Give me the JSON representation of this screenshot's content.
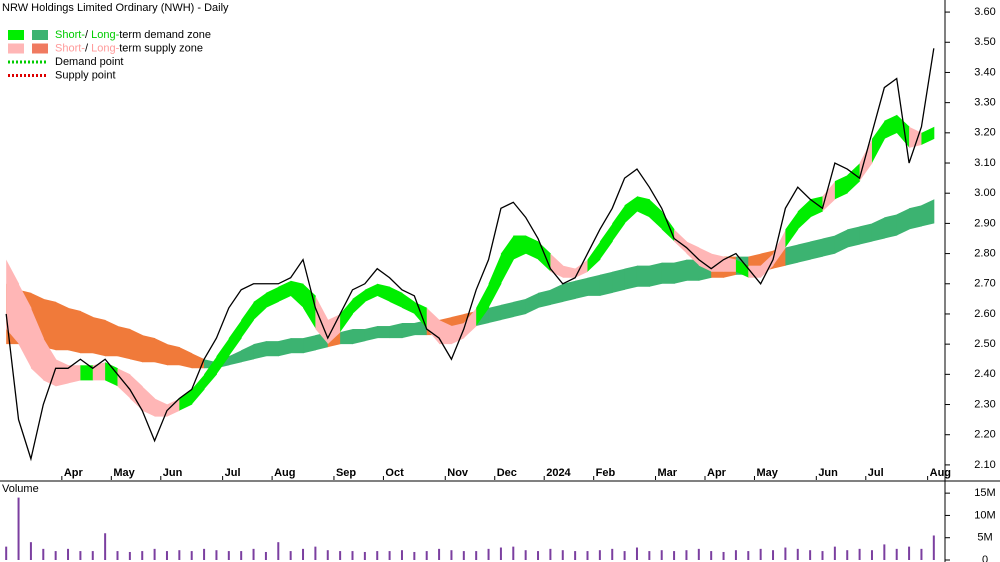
{
  "chart_data": [
    {
      "type": "zone-line",
      "title": "NRW Holdings Limited Ordinary (NWH) - Daily",
      "legend": [
        {
          "parts": [
            {
              "text": "Short-",
              "color": "#00cc00"
            },
            {
              "text": "/ ",
              "color": "#000000"
            },
            {
              "text": "Long-",
              "color": "#00cc00"
            },
            {
              "text": "term demand zone",
              "color": "#000000"
            }
          ],
          "swatches": [
            "#00ee00",
            "#3cb371"
          ]
        },
        {
          "parts": [
            {
              "text": "Short-",
              "color": "#ff9a9a"
            },
            {
              "text": "/ ",
              "color": "#000000"
            },
            {
              "text": "Long-",
              "color": "#ff9a9a"
            },
            {
              "text": "term supply zone",
              "color": "#000000"
            }
          ],
          "swatches": [
            "#ffb6b6",
            "#f07a60"
          ]
        },
        {
          "parts": [
            {
              "text": "Demand point",
              "color": "#000000"
            }
          ],
          "dotted": "#00cc00"
        },
        {
          "parts": [
            {
              "text": "Supply point",
              "color": "#000000"
            }
          ],
          "dotted": "#dd0000"
        }
      ],
      "categories": [
        null,
        null,
        null,
        null,
        null,
        "Apr",
        null,
        null,
        null,
        "May",
        null,
        null,
        null,
        "Jun",
        null,
        null,
        null,
        null,
        "Jul",
        null,
        null,
        null,
        "Aug",
        null,
        null,
        null,
        null,
        "Sep",
        null,
        null,
        null,
        "Oct",
        null,
        null,
        null,
        null,
        "Nov",
        null,
        null,
        null,
        "Dec",
        null,
        null,
        null,
        "2024",
        null,
        null,
        null,
        "Feb",
        null,
        null,
        null,
        null,
        "Mar",
        null,
        null,
        null,
        "Apr",
        null,
        null,
        null,
        "May",
        null,
        null,
        null,
        null,
        "Jun",
        null,
        null,
        null,
        "Jul",
        null,
        null,
        null,
        null,
        "Aug"
      ],
      "series": [
        {
          "name": "Close",
          "color": "#000000",
          "values": [
            2.6,
            2.25,
            2.12,
            2.3,
            2.42,
            2.42,
            2.45,
            2.42,
            2.45,
            2.4,
            2.35,
            2.28,
            2.18,
            2.28,
            2.32,
            2.35,
            2.45,
            2.52,
            2.62,
            2.68,
            2.7,
            2.7,
            2.7,
            2.72,
            2.78,
            2.62,
            2.52,
            2.6,
            2.68,
            2.7,
            2.75,
            2.72,
            2.68,
            2.66,
            2.55,
            2.52,
            2.45,
            2.55,
            2.68,
            2.78,
            2.95,
            2.97,
            2.92,
            2.85,
            2.75,
            2.7,
            2.72,
            2.8,
            2.88,
            2.95,
            3.05,
            3.08,
            3.02,
            2.95,
            2.85,
            2.82,
            2.78,
            2.75,
            2.78,
            2.8,
            2.75,
            2.7,
            2.78,
            2.95,
            3.02,
            2.98,
            2.95,
            3.1,
            3.08,
            3.05,
            3.2,
            3.35,
            3.38,
            3.1,
            3.22,
            3.48
          ]
        }
      ],
      "zones": [
        {
          "demand_color": "#3cb371",
          "supply_color": "#f07a3a",
          "upper": [
            2.7,
            2.68,
            2.67,
            2.65,
            2.64,
            2.62,
            2.61,
            2.59,
            2.58,
            2.56,
            2.55,
            2.53,
            2.52,
            2.5,
            2.49,
            2.47,
            2.45,
            2.44,
            2.46,
            2.48,
            2.5,
            2.51,
            2.51,
            2.52,
            2.52,
            2.53,
            2.54,
            2.54,
            2.55,
            2.55,
            2.56,
            2.56,
            2.57,
            2.57,
            2.58,
            2.58,
            2.59,
            2.6,
            2.61,
            2.62,
            2.63,
            2.64,
            2.65,
            2.67,
            2.68,
            2.7,
            2.71,
            2.72,
            2.73,
            2.74,
            2.75,
            2.76,
            2.76,
            2.77,
            2.77,
            2.78,
            2.78,
            2.78,
            2.79,
            2.79,
            2.79,
            2.8,
            2.81,
            2.82,
            2.83,
            2.84,
            2.85,
            2.86,
            2.88,
            2.89,
            2.9,
            2.92,
            2.93,
            2.95,
            2.96,
            2.98
          ],
          "lower": [
            2.5,
            2.5,
            2.49,
            2.49,
            2.48,
            2.48,
            2.47,
            2.47,
            2.46,
            2.46,
            2.45,
            2.44,
            2.44,
            2.43,
            2.43,
            2.42,
            2.42,
            2.42,
            2.43,
            2.44,
            2.45,
            2.46,
            2.46,
            2.47,
            2.47,
            2.48,
            2.49,
            2.5,
            2.5,
            2.51,
            2.52,
            2.52,
            2.52,
            2.53,
            2.53,
            2.53,
            2.54,
            2.55,
            2.56,
            2.57,
            2.58,
            2.59,
            2.6,
            2.62,
            2.63,
            2.64,
            2.65,
            2.66,
            2.66,
            2.67,
            2.68,
            2.69,
            2.69,
            2.7,
            2.7,
            2.71,
            2.71,
            2.72,
            2.72,
            2.73,
            2.73,
            2.74,
            2.75,
            2.76,
            2.77,
            2.78,
            2.79,
            2.8,
            2.82,
            2.83,
            2.84,
            2.85,
            2.86,
            2.88,
            2.89,
            2.9
          ]
        },
        {
          "demand_color": "#00ee00",
          "supply_color": "#ffb6b6",
          "upper": [
            2.78,
            2.7,
            2.62,
            2.52,
            2.45,
            2.43,
            2.43,
            2.43,
            2.44,
            2.42,
            2.4,
            2.36,
            2.32,
            2.3,
            2.32,
            2.35,
            2.4,
            2.46,
            2.52,
            2.58,
            2.64,
            2.67,
            2.69,
            2.71,
            2.7,
            2.66,
            2.58,
            2.6,
            2.65,
            2.68,
            2.7,
            2.69,
            2.67,
            2.64,
            2.62,
            2.58,
            2.56,
            2.57,
            2.62,
            2.7,
            2.8,
            2.86,
            2.86,
            2.84,
            2.8,
            2.76,
            2.75,
            2.78,
            2.84,
            2.9,
            2.96,
            2.99,
            2.98,
            2.94,
            2.88,
            2.84,
            2.82,
            2.8,
            2.79,
            2.78,
            2.76,
            2.76,
            2.8,
            2.88,
            2.94,
            2.98,
            2.99,
            3.04,
            3.06,
            3.1,
            3.18,
            3.24,
            3.26,
            3.22,
            3.2,
            3.22
          ],
          "lower": [
            2.55,
            2.5,
            2.42,
            2.38,
            2.36,
            2.37,
            2.38,
            2.38,
            2.38,
            2.36,
            2.32,
            2.28,
            2.26,
            2.26,
            2.28,
            2.3,
            2.35,
            2.4,
            2.46,
            2.52,
            2.58,
            2.62,
            2.64,
            2.66,
            2.62,
            2.55,
            2.5,
            2.54,
            2.6,
            2.64,
            2.66,
            2.64,
            2.62,
            2.6,
            2.55,
            2.5,
            2.5,
            2.52,
            2.56,
            2.62,
            2.7,
            2.78,
            2.8,
            2.78,
            2.74,
            2.72,
            2.72,
            2.74,
            2.78,
            2.84,
            2.9,
            2.94,
            2.92,
            2.88,
            2.84,
            2.8,
            2.76,
            2.74,
            2.74,
            2.74,
            2.72,
            2.72,
            2.76,
            2.82,
            2.88,
            2.92,
            2.94,
            2.98,
            3.0,
            3.04,
            3.1,
            3.18,
            3.2,
            3.15,
            3.16,
            3.18
          ]
        }
      ],
      "ylim": [
        2.05,
        3.64
      ],
      "yticks": [
        {
          "value": 2.1,
          "label": "2.10"
        },
        {
          "value": 2.2,
          "label": "2.20"
        },
        {
          "value": 2.3,
          "label": "2.30"
        },
        {
          "value": 2.4,
          "label": "2.40"
        },
        {
          "value": 2.5,
          "label": "2.50"
        },
        {
          "value": 2.6,
          "label": "2.60"
        },
        {
          "value": 2.7,
          "label": "2.70"
        },
        {
          "value": 2.8,
          "label": "2.80"
        },
        {
          "value": 2.9,
          "label": "2.90"
        },
        {
          "value": 3.0,
          "label": "3.00"
        },
        {
          "value": 3.1,
          "label": "3.10"
        },
        {
          "value": 3.2,
          "label": "3.20"
        },
        {
          "value": 3.3,
          "label": "3.30"
        },
        {
          "value": 3.4,
          "label": "3.40"
        },
        {
          "value": 3.5,
          "label": "3.50"
        },
        {
          "value": 3.6,
          "label": "3.60"
        }
      ]
    },
    {
      "type": "bar",
      "title": "Volume",
      "title_color": "#660099",
      "color": "#7b3fa0",
      "values": [
        3000000,
        14000000,
        4000000,
        2500000,
        2000000,
        2500000,
        2000000,
        2000000,
        6000000,
        2000000,
        1800000,
        2000000,
        2500000,
        2000000,
        2200000,
        2000000,
        2500000,
        2200000,
        2000000,
        2000000,
        2500000,
        1800000,
        4000000,
        2000000,
        2500000,
        3000000,
        2200000,
        2000000,
        2000000,
        1800000,
        2000000,
        2000000,
        2200000,
        1800000,
        2000000,
        2500000,
        2200000,
        2000000,
        2000000,
        2500000,
        2800000,
        3000000,
        2200000,
        2000000,
        2500000,
        2200000,
        2000000,
        2000000,
        2200000,
        2500000,
        2000000,
        2800000,
        2000000,
        2200000,
        2000000,
        2200000,
        2500000,
        2000000,
        1800000,
        2200000,
        2000000,
        2500000,
        2200000,
        2800000,
        2500000,
        2200000,
        2000000,
        3000000,
        2200000,
        2500000,
        2200000,
        3500000,
        2500000,
        3000000,
        2500000,
        5500000
      ],
      "ylim": [
        0,
        17500000
      ],
      "yticks": [
        {
          "value": 0,
          "label": "0"
        },
        {
          "value": 5000000,
          "label": "5M"
        },
        {
          "value": 10000000,
          "label": "10M"
        },
        {
          "value": 15000000,
          "label": "15M"
        }
      ]
    }
  ]
}
